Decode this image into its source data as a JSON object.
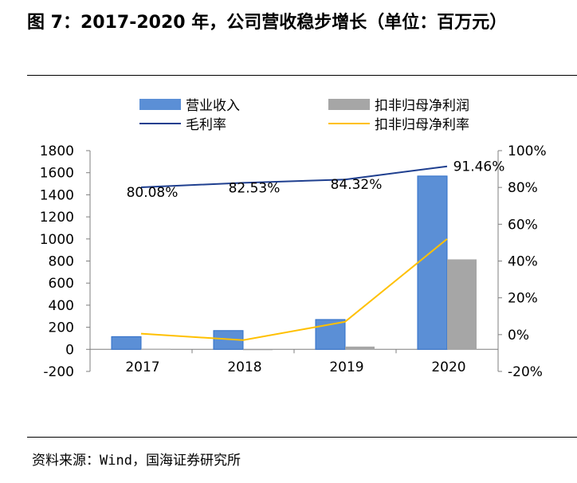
{
  "figure": {
    "title": "图 7：2017-2020 年，公司营收稳步增长（单位：百万元）",
    "source": "资料来源：Wind，国海证券研究所"
  },
  "colors": {
    "revenue": "#5B8FD6",
    "revenue_edge": "#2F6FC8",
    "net_profit": "#A6A6A6",
    "gross_margin": "#1F3F8F",
    "net_margin": "#FFC000",
    "axis": "#7F7F7F"
  },
  "chart_data": {
    "type": "bar",
    "categories": [
      "2017",
      "2018",
      "2019",
      "2020"
    ],
    "series": [
      {
        "name": "营业收入",
        "kind": "bar",
        "axis": "left",
        "values": [
          115,
          170,
          270,
          1570
        ]
      },
      {
        "name": "扣非归母净利润",
        "kind": "bar",
        "axis": "left",
        "values": [
          5,
          -5,
          25,
          815
        ]
      },
      {
        "name": "毛利率",
        "kind": "line",
        "axis": "right",
        "values": [
          80.08,
          82.53,
          84.32,
          91.46
        ],
        "data_labels": [
          "80.08%",
          "82.53%",
          "84.32%",
          "91.46%"
        ]
      },
      {
        "name": "扣非归母净利率",
        "kind": "line",
        "axis": "right",
        "values": [
          0.5,
          -3,
          7,
          52
        ]
      }
    ],
    "y_left": {
      "min": -200,
      "max": 1800,
      "ticks": [
        "1800",
        "1600",
        "1400",
        "1200",
        "1000",
        "800",
        "600",
        "400",
        "200",
        "0",
        "-200"
      ]
    },
    "y_right": {
      "min": -20,
      "max": 100,
      "ticks": [
        "100%",
        "80%",
        "60%",
        "40%",
        "20%",
        "0%",
        "-20%"
      ]
    },
    "legend": {
      "position": "top"
    },
    "grid": false
  }
}
